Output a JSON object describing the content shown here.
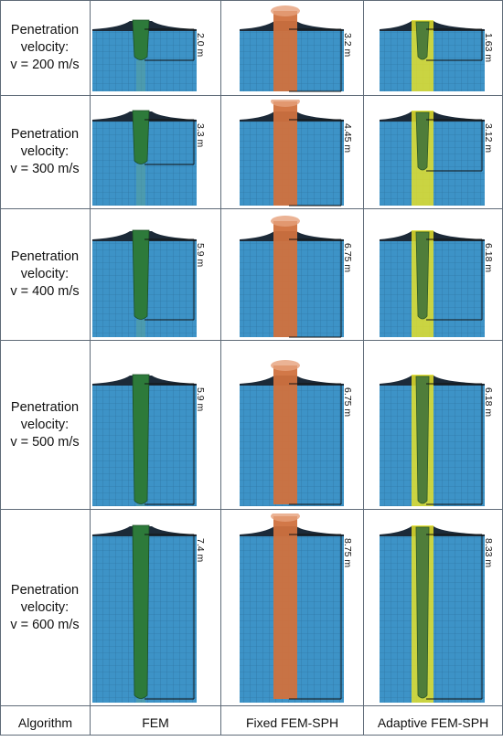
{
  "rows": [
    {
      "label_line1": "Penetration",
      "label_line2": "velocity:",
      "label_line3": "v = 200 m/s",
      "fem": "2.0 m",
      "fixed": "3.2 m",
      "adaptive": "1.63 m"
    },
    {
      "label_line1": "Penetration",
      "label_line2": "velocity:",
      "label_line3": "v = 300 m/s",
      "fem": "3.3 m",
      "fixed": "4.45 m",
      "adaptive": "3.12 m"
    },
    {
      "label_line1": "Penetration",
      "label_line2": "velocity:",
      "label_line3": "v = 400 m/s",
      "fem": "5.9 m",
      "fixed": "6.75 m",
      "adaptive": "6.18 m"
    },
    {
      "label_line1": "Penetration",
      "label_line2": "velocity:",
      "label_line3": "v = 500 m/s",
      "fem": "5.9 m",
      "fixed": "6.75 m",
      "adaptive": "6.18 m"
    },
    {
      "label_line1": "Penetration",
      "label_line2": "velocity:",
      "label_line3": "v = 600 m/s",
      "fem": "7.4 m",
      "fixed": "8.75 m",
      "adaptive": "8.33 m"
    }
  ],
  "footer": {
    "algorithm": "Algorithm",
    "fem": "FEM",
    "fixed": "Fixed FEM-SPH",
    "adaptive": "Adaptive FEM-SPH"
  },
  "colors": {
    "mesh": "#3d93c7",
    "fem_projectile": "#2d7a3a",
    "fixed_projectile": "#d0713e",
    "adaptive_projectile": "#e3df2a",
    "crater": "#1c2a38"
  }
}
